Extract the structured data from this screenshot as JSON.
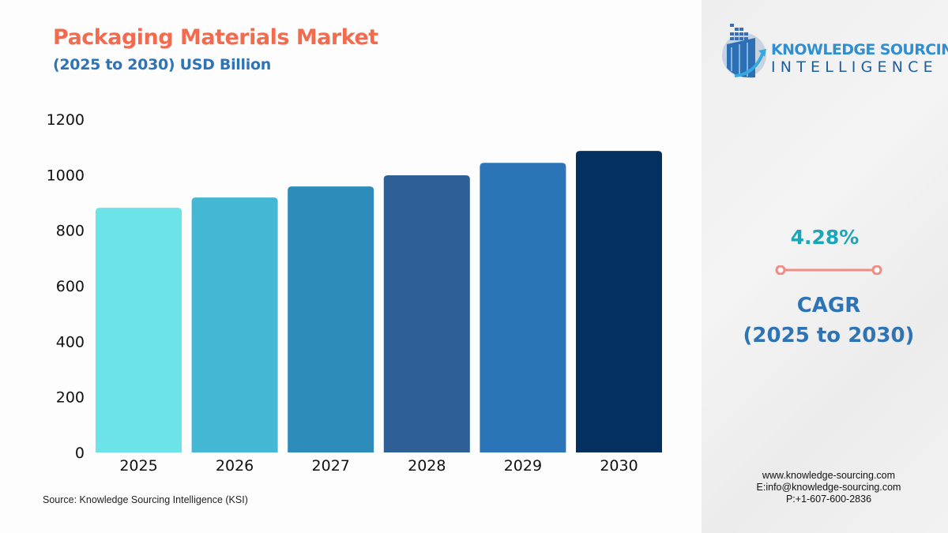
{
  "chart_data": {
    "type": "bar",
    "title": "Packaging Materials Market",
    "subtitle": "(2025 to 2030) USD Billion",
    "categories": [
      "2025",
      "2026",
      "2027",
      "2028",
      "2029",
      "2030"
    ],
    "values": [
      881,
      918,
      958,
      998,
      1043,
      1086
    ],
    "colors": [
      "#6be3e8",
      "#43b7d4",
      "#2e8cbb",
      "#2e5f97",
      "#2b74b8",
      "#03305f"
    ],
    "xlabel": "",
    "ylabel": "",
    "ylim": [
      0,
      1200
    ],
    "yticks": [
      0,
      200,
      400,
      600,
      800,
      1000,
      1200
    ],
    "grid": false,
    "legend": "none"
  },
  "source": "Source: Knowledge Sourcing Intelligence (KSI)",
  "logo": {
    "line1": "KNOWLEDGE SOURCING",
    "line2": "INTELLIGENCE"
  },
  "cagr": {
    "value": "4.28%",
    "label": "CAGR",
    "period": "(2025 to 2030)",
    "accent": "#f28b82"
  },
  "contact": {
    "website": "www.knowledge-sourcing.com",
    "email": "E:info@knowledge-sourcing.com",
    "phone": "P:+1-607-600-2836"
  }
}
